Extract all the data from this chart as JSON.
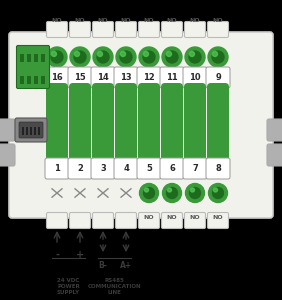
{
  "bg_color": "#000000",
  "device_bg": "#f2f2ec",
  "device_border": "#cccccc",
  "device_inner_bg": "#e8e8e0",
  "green": "#3a9a3a",
  "green_dark": "#1e6b1e",
  "gray_tab": "#b0b0b0",
  "text_color": "#2a2a2a",
  "arrow_color": "#3a3a3a",
  "top_labels": [
    "NO",
    "NO",
    "NO",
    "NO",
    "NO",
    "NO",
    "NO",
    "NO"
  ],
  "top_nums_upper": [
    16,
    15,
    14,
    13,
    12,
    11,
    10,
    9
  ],
  "bottom_nums": [
    1,
    2,
    3,
    4,
    5,
    6,
    7,
    8
  ],
  "bottom_circle_cross": [
    true,
    true,
    true,
    true,
    false,
    false,
    false,
    false
  ],
  "bottom_no_labels": [
    "NO",
    "NO",
    "NO",
    "NO"
  ],
  "power_labels": [
    "-",
    "+"
  ],
  "rs485_labels": [
    "B-",
    "A+"
  ],
  "label_24vdc": "24 VDC\nPOWER\nSUPPLY",
  "label_rs485": "RS485\nCOMMUNICATION\nLINE"
}
